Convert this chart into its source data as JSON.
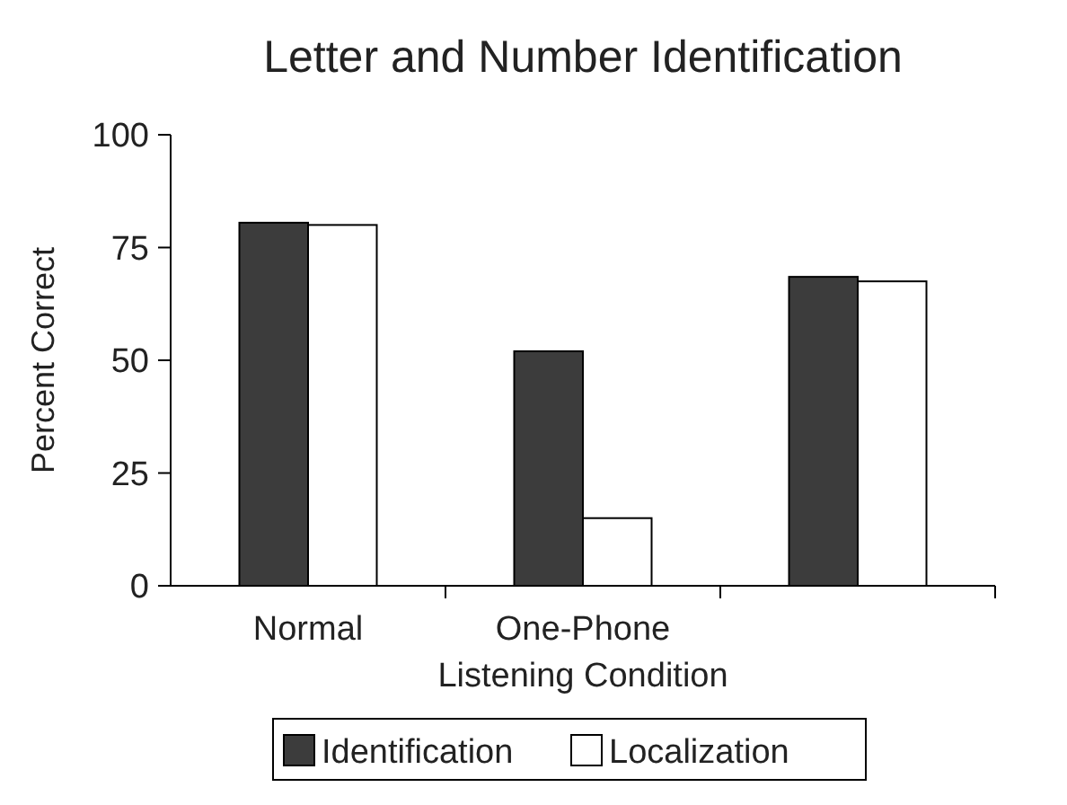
{
  "chart_data": {
    "type": "bar",
    "title": "Letter and Number Identification",
    "xlabel": "Listening Condition",
    "ylabel": "Percent Correct",
    "categories": [
      "Normal",
      "One-Phone",
      null
    ],
    "series": [
      {
        "name": "Identification",
        "color": "#3c3c3c",
        "values": [
          80.5,
          52,
          68.5
        ]
      },
      {
        "name": "Localization",
        "color": "#ffffff",
        "values": [
          80,
          15,
          67.5
        ]
      }
    ],
    "ylim": [
      0,
      100
    ],
    "yticks": [
      0,
      25,
      50,
      75,
      100
    ],
    "grid": false,
    "legend": "bottom"
  }
}
